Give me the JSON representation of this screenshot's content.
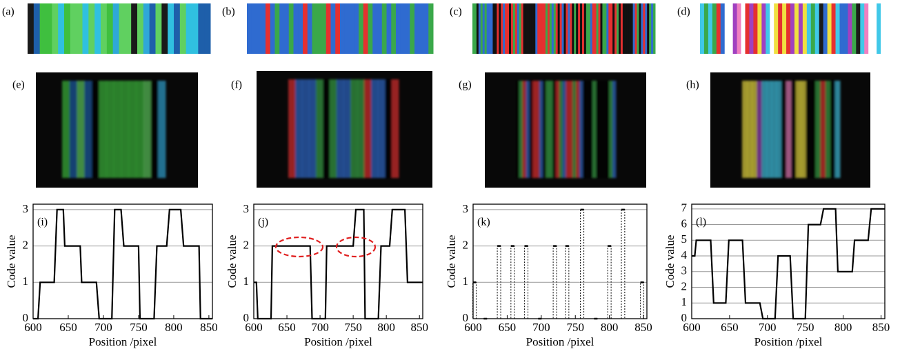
{
  "panels": [
    "(a)",
    "(b)",
    "(c)",
    "(d)",
    "(e)",
    "(f)",
    "(g)",
    "(h)"
  ],
  "chart_data": [
    {
      "type": "line",
      "label": "(i)",
      "ylabel": "Code value",
      "xlabel": "Position /pixel",
      "color": "#000000",
      "grid": true,
      "x": [
        600,
        607,
        610,
        630,
        634,
        643,
        645,
        667,
        669,
        690,
        694,
        712,
        716,
        725,
        729,
        750,
        752,
        772,
        776,
        790,
        794,
        810,
        814,
        836,
        838,
        855
      ],
      "values": [
        0,
        0,
        1,
        1,
        3,
        3,
        2,
        2,
        1,
        1,
        0,
        0,
        3,
        3,
        2,
        2,
        0,
        0,
        2,
        2,
        3,
        3,
        2,
        2,
        0,
        0
      ],
      "xlim": [
        600,
        855
      ],
      "ylim": [
        0,
        3.15
      ],
      "xticks": [
        600,
        650,
        700,
        750,
        800,
        850
      ],
      "yticks": [
        0,
        1,
        2,
        3
      ]
    },
    {
      "type": "line",
      "label": "(j)",
      "ylabel": "Code value",
      "xlabel": "Position /pixel",
      "color": "#000000",
      "grid": true,
      "x": [
        600,
        604,
        606,
        626,
        628,
        685,
        688,
        708,
        710,
        750,
        754,
        766,
        768,
        788,
        792,
        805,
        809,
        828,
        832,
        855
      ],
      "values": [
        1,
        1,
        0,
        0,
        2,
        2,
        0,
        0,
        2,
        2,
        3,
        3,
        0,
        0,
        2,
        2,
        3,
        3,
        1,
        1
      ],
      "xlim": [
        600,
        855
      ],
      "ylim": [
        0,
        3.15
      ],
      "xticks": [
        600,
        650,
        700,
        750,
        800,
        850
      ],
      "yticks": [
        0,
        1,
        2,
        3
      ]
    },
    {
      "type": "bar",
      "label": "(k)",
      "ylabel": "Code value",
      "xlabel": "Position /pixel",
      "color": "#000000",
      "grid": true,
      "x": [
        602,
        618,
        638,
        658,
        678,
        698,
        720,
        738,
        760,
        780,
        800,
        820,
        848
      ],
      "values": [
        1,
        0,
        2,
        2,
        2,
        0,
        2,
        2,
        3,
        0,
        2,
        3,
        1
      ],
      "xlim": [
        600,
        855
      ],
      "ylim": [
        0,
        3.15
      ],
      "xticks": [
        600,
        650,
        700,
        750,
        800,
        850
      ],
      "yticks": [
        0,
        1,
        2,
        3
      ]
    },
    {
      "type": "line",
      "label": "(l)",
      "ylabel": "Code value",
      "xlabel": "Position /pixel",
      "color": "#000000",
      "grid": true,
      "x": [
        600,
        604,
        606,
        625,
        629,
        645,
        649,
        667,
        671,
        690,
        694,
        710,
        714,
        730,
        734,
        750,
        754,
        770,
        774,
        790,
        793,
        812,
        815,
        833,
        837,
        855
      ],
      "values": [
        4,
        4,
        5,
        5,
        1,
        1,
        5,
        5,
        1,
        1,
        0,
        0,
        4,
        4,
        0,
        0,
        6,
        6,
        7,
        7,
        3,
        3,
        5,
        5,
        7,
        7
      ],
      "xlim": [
        600,
        855
      ],
      "ylim": [
        0,
        7.3
      ],
      "xticks": [
        600,
        650,
        700,
        750,
        800,
        850
      ],
      "yticks": [
        0,
        1,
        2,
        3,
        4,
        5,
        6,
        7
      ]
    }
  ]
}
